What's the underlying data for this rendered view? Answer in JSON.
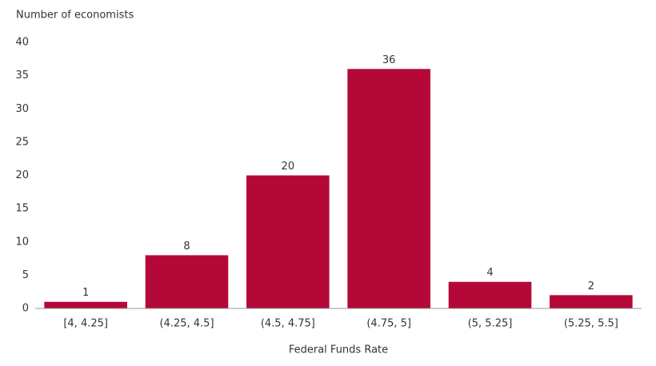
{
  "chart_data": {
    "type": "bar",
    "y_label": "Number of economists",
    "x_label": "Federal Funds Rate",
    "categories": [
      "[4, 4.25]",
      "(4.25, 4.5]",
      "(4.5, 4.75]",
      "(4.75, 5]",
      "(5, 5.25]",
      "(5.25, 5.5]"
    ],
    "values": [
      1,
      8,
      20,
      36,
      4,
      2
    ],
    "color": "#b30838",
    "ylim": [
      0,
      40
    ],
    "yticks": [
      0,
      5,
      10,
      15,
      20,
      25,
      30,
      35,
      40
    ],
    "grid": false
  }
}
